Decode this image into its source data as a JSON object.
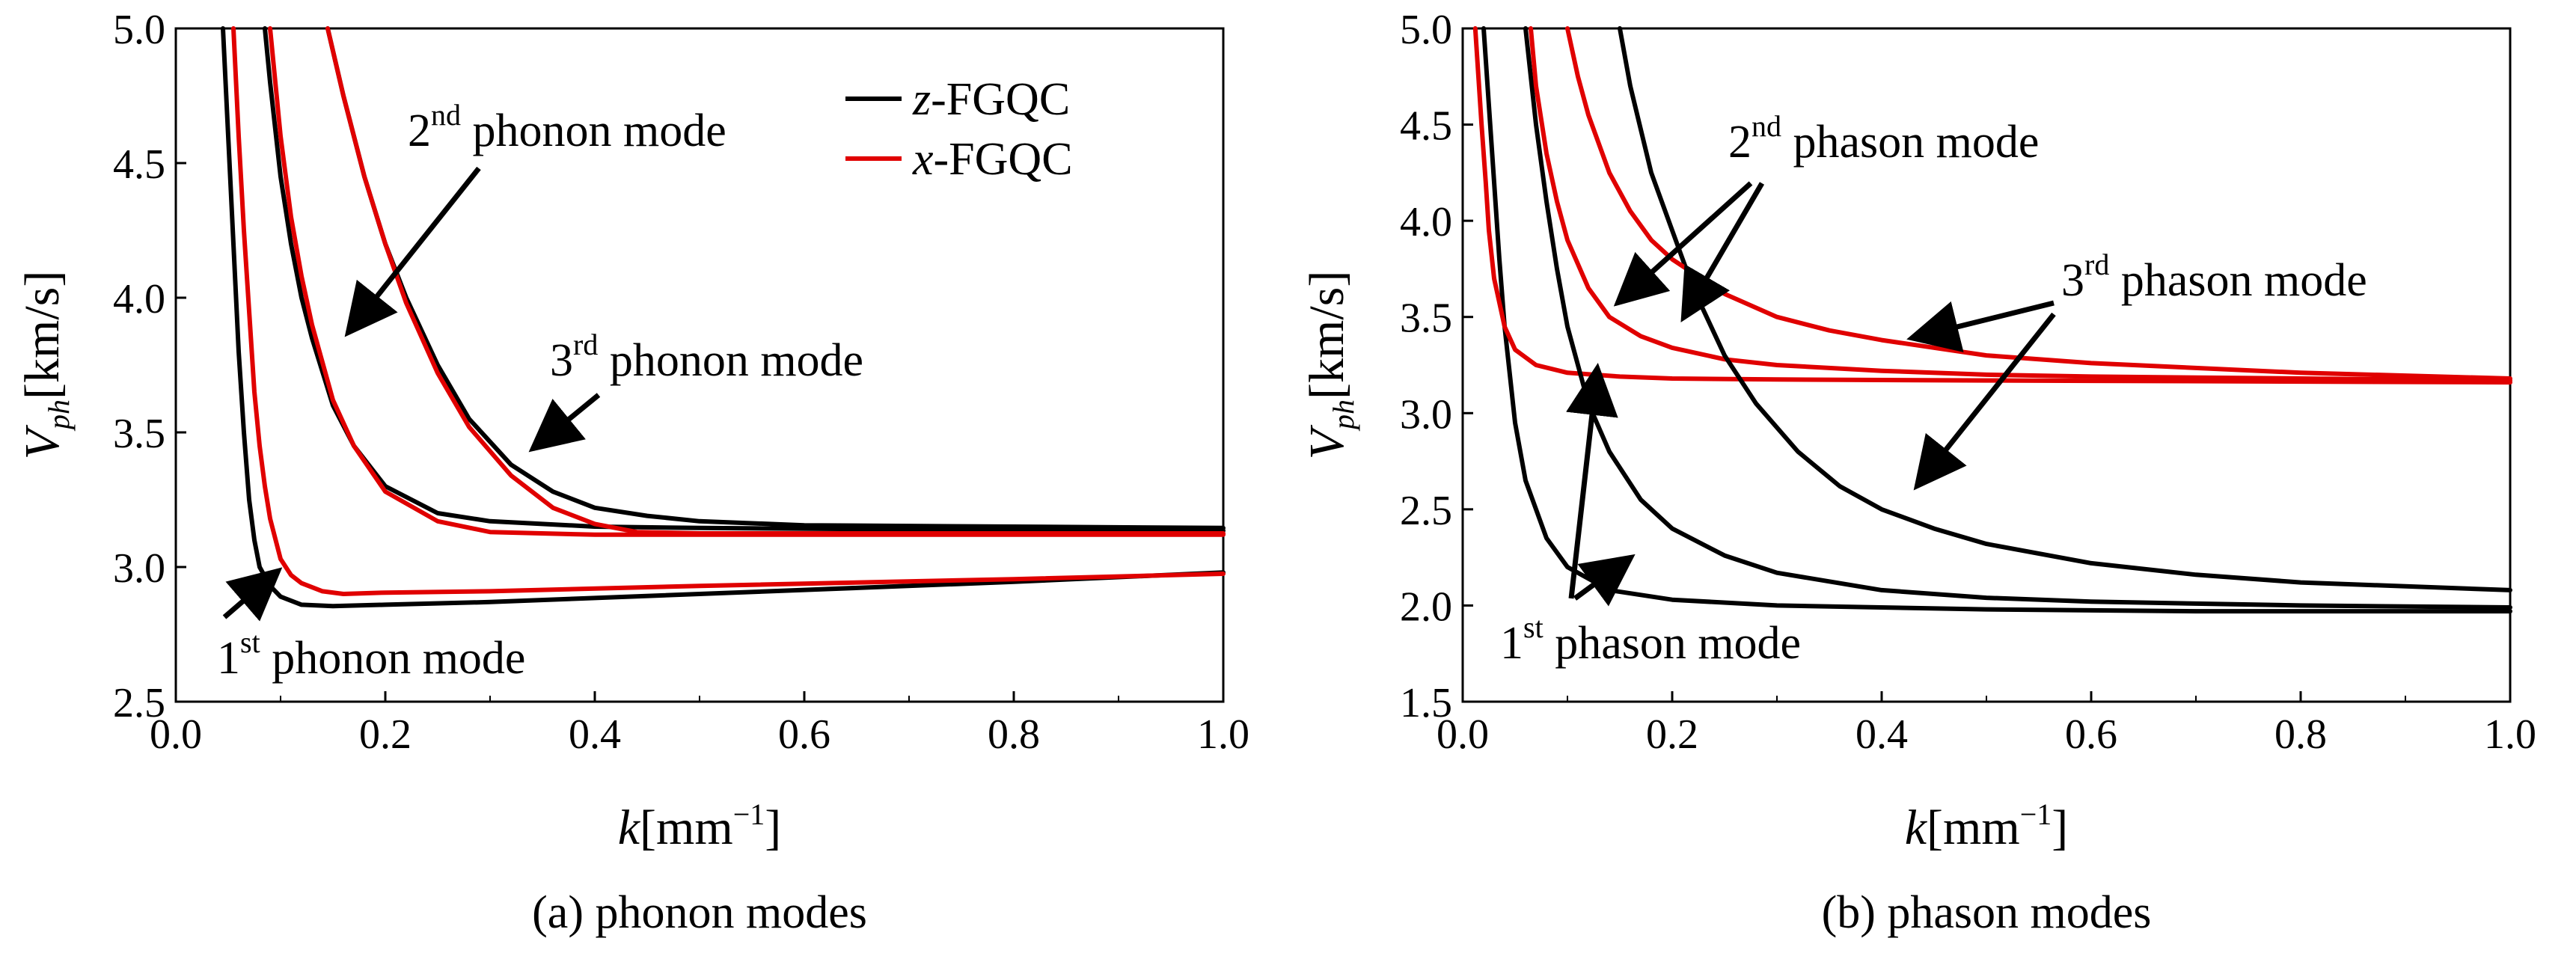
{
  "chart_data": [
    {
      "id": "a",
      "type": "line",
      "caption": "(a) phonon modes",
      "xlabel": "k[mm−1]",
      "ylabel": "Vph[km/s]",
      "xlim": [
        0.0,
        1.0
      ],
      "ylim": [
        2.5,
        5.0
      ],
      "xticks": [
        "0.0",
        "0.2",
        "0.4",
        "0.6",
        "0.8",
        "1.0"
      ],
      "yticks": [
        "2.5",
        "3.0",
        "3.5",
        "4.0",
        "4.5",
        "5.0"
      ],
      "legend": {
        "position": "top-right",
        "entries": [
          {
            "label_italic": "z",
            "label_rest": "-FGQC",
            "color": "#000000"
          },
          {
            "label_italic": "x",
            "label_rest": "-FGQC",
            "color": "#e00000"
          }
        ]
      },
      "series": [
        {
          "name": "1st phonon mode (z-FGQC)",
          "color": "#000000",
          "x": [
            0.045,
            0.05,
            0.055,
            0.06,
            0.065,
            0.07,
            0.075,
            0.08,
            0.09,
            0.1,
            0.12,
            0.15,
            0.2,
            0.3,
            0.4,
            0.6,
            0.8,
            1.0
          ],
          "y": [
            5.0,
            4.6,
            4.2,
            3.8,
            3.5,
            3.25,
            3.1,
            3.0,
            2.93,
            2.89,
            2.86,
            2.855,
            2.86,
            2.87,
            2.885,
            2.915,
            2.945,
            2.98
          ]
        },
        {
          "name": "1st phonon mode (x-FGQC)",
          "color": "#e00000",
          "x": [
            0.055,
            0.06,
            0.065,
            0.07,
            0.075,
            0.08,
            0.085,
            0.09,
            0.1,
            0.11,
            0.12,
            0.14,
            0.16,
            0.2,
            0.3,
            0.5,
            0.8,
            1.0
          ],
          "y": [
            5.0,
            4.6,
            4.25,
            3.95,
            3.65,
            3.45,
            3.3,
            3.18,
            3.03,
            2.97,
            2.94,
            2.91,
            2.9,
            2.905,
            2.91,
            2.93,
            2.955,
            2.975
          ]
        },
        {
          "name": "2nd phonon mode (z-FGQC)",
          "color": "#000000",
          "x": [
            0.085,
            0.09,
            0.1,
            0.11,
            0.12,
            0.13,
            0.15,
            0.17,
            0.2,
            0.25,
            0.3,
            0.4,
            0.5,
            0.7,
            1.0
          ],
          "y": [
            5.0,
            4.8,
            4.45,
            4.2,
            4.0,
            3.85,
            3.6,
            3.45,
            3.3,
            3.2,
            3.17,
            3.15,
            3.145,
            3.14,
            3.135
          ]
        },
        {
          "name": "2nd phonon mode (x-FGQC)",
          "color": "#e00000",
          "x": [
            0.09,
            0.1,
            0.11,
            0.12,
            0.13,
            0.15,
            0.17,
            0.2,
            0.25,
            0.3,
            0.4,
            0.5,
            0.7,
            1.0
          ],
          "y": [
            5.0,
            4.6,
            4.3,
            4.08,
            3.9,
            3.62,
            3.45,
            3.28,
            3.17,
            3.13,
            3.12,
            3.12,
            3.12,
            3.12
          ]
        },
        {
          "name": "3rd phonon mode (z-FGQC)",
          "color": "#000000",
          "x": [
            0.145,
            0.16,
            0.18,
            0.2,
            0.22,
            0.25,
            0.28,
            0.32,
            0.36,
            0.4,
            0.45,
            0.5,
            0.6,
            0.8,
            1.0
          ],
          "y": [
            5.0,
            4.75,
            4.45,
            4.2,
            4.0,
            3.75,
            3.55,
            3.38,
            3.28,
            3.22,
            3.19,
            3.17,
            3.155,
            3.15,
            3.145
          ]
        },
        {
          "name": "3rd phonon mode (x-FGQC)",
          "color": "#e00000",
          "x": [
            0.145,
            0.16,
            0.18,
            0.2,
            0.22,
            0.25,
            0.28,
            0.32,
            0.36,
            0.4,
            0.44,
            0.5,
            0.6,
            0.8,
            1.0
          ],
          "y": [
            5.0,
            4.75,
            4.45,
            4.2,
            3.98,
            3.72,
            3.52,
            3.34,
            3.22,
            3.16,
            3.13,
            3.125,
            3.125,
            3.125,
            3.125
          ]
        }
      ],
      "annotations": [
        {
          "text": "2",
          "sup": "nd",
          "rest": " phonon mode"
        },
        {
          "text": "3",
          "sup": "rd",
          "rest": " phonon mode"
        },
        {
          "text": "1",
          "sup": "st",
          "rest": " phonon mode"
        }
      ]
    },
    {
      "id": "b",
      "type": "line",
      "caption": "(b) phason modes",
      "xlabel": "k[mm−1]",
      "ylabel": "Vph[km/s]",
      "xlim": [
        0.0,
        1.0
      ],
      "ylim": [
        1.5,
        5.0
      ],
      "xticks": [
        "0.0",
        "0.2",
        "0.4",
        "0.6",
        "0.8",
        "1.0"
      ],
      "yticks": [
        "1.5",
        "2.0",
        "2.5",
        "3.0",
        "3.5",
        "4.0",
        "4.5",
        "5.0"
      ],
      "series": [
        {
          "name": "1st phason mode (z-FGQC)",
          "color": "#000000",
          "x": [
            0.02,
            0.025,
            0.03,
            0.035,
            0.04,
            0.05,
            0.06,
            0.08,
            0.1,
            0.14,
            0.2,
            0.3,
            0.5,
            0.7,
            1.0
          ],
          "y": [
            5.0,
            4.6,
            4.2,
            3.8,
            3.45,
            2.95,
            2.65,
            2.35,
            2.2,
            2.08,
            2.03,
            2.0,
            1.98,
            1.97,
            1.97
          ]
        },
        {
          "name": "1st phason mode (x-FGQC)",
          "color": "#e00000",
          "x": [
            0.012,
            0.015,
            0.018,
            0.022,
            0.025,
            0.03,
            0.04,
            0.05,
            0.07,
            0.1,
            0.15,
            0.2,
            0.3,
            0.5,
            1.0
          ],
          "y": [
            5.0,
            4.75,
            4.5,
            4.2,
            3.95,
            3.7,
            3.45,
            3.33,
            3.25,
            3.21,
            3.19,
            3.18,
            3.175,
            3.17,
            3.16
          ]
        },
        {
          "name": "2nd phason mode (z-FGQC)",
          "color": "#000000",
          "x": [
            0.06,
            0.07,
            0.08,
            0.09,
            0.1,
            0.12,
            0.14,
            0.17,
            0.2,
            0.25,
            0.3,
            0.4,
            0.5,
            0.6,
            0.8,
            1.0
          ],
          "y": [
            5.0,
            4.5,
            4.1,
            3.75,
            3.45,
            3.05,
            2.8,
            2.55,
            2.4,
            2.26,
            2.17,
            2.08,
            2.04,
            2.02,
            2.0,
            1.99
          ]
        },
        {
          "name": "2nd phason mode (x-FGQC)",
          "color": "#e00000",
          "x": [
            0.065,
            0.07,
            0.08,
            0.09,
            0.1,
            0.12,
            0.14,
            0.17,
            0.2,
            0.25,
            0.3,
            0.4,
            0.5,
            0.6,
            0.8,
            1.0
          ],
          "y": [
            5.0,
            4.7,
            4.35,
            4.1,
            3.9,
            3.65,
            3.5,
            3.4,
            3.34,
            3.28,
            3.25,
            3.22,
            3.2,
            3.19,
            3.18,
            3.17
          ]
        },
        {
          "name": "3rd phason mode (z-FGQC)",
          "color": "#000000",
          "x": [
            0.15,
            0.16,
            0.18,
            0.2,
            0.22,
            0.25,
            0.28,
            0.32,
            0.36,
            0.4,
            0.45,
            0.5,
            0.6,
            0.7,
            0.8,
            1.0
          ],
          "y": [
            5.0,
            4.7,
            4.25,
            3.95,
            3.65,
            3.3,
            3.05,
            2.8,
            2.62,
            2.5,
            2.4,
            2.32,
            2.22,
            2.16,
            2.12,
            2.08
          ]
        },
        {
          "name": "3rd phason mode (x-FGQC)",
          "color": "#e00000",
          "x": [
            0.1,
            0.11,
            0.12,
            0.14,
            0.16,
            0.18,
            0.2,
            0.25,
            0.3,
            0.35,
            0.4,
            0.5,
            0.6,
            0.8,
            1.0
          ],
          "y": [
            5.0,
            4.75,
            4.55,
            4.25,
            4.05,
            3.9,
            3.8,
            3.62,
            3.5,
            3.43,
            3.38,
            3.3,
            3.26,
            3.21,
            3.18
          ]
        }
      ],
      "annotations": [
        {
          "text": "2",
          "sup": "nd",
          "rest": " phason mode"
        },
        {
          "text": "3",
          "sup": "rd",
          "rest": " phason mode"
        },
        {
          "text": "1",
          "sup": "st",
          "rest": " phason mode"
        }
      ]
    }
  ]
}
